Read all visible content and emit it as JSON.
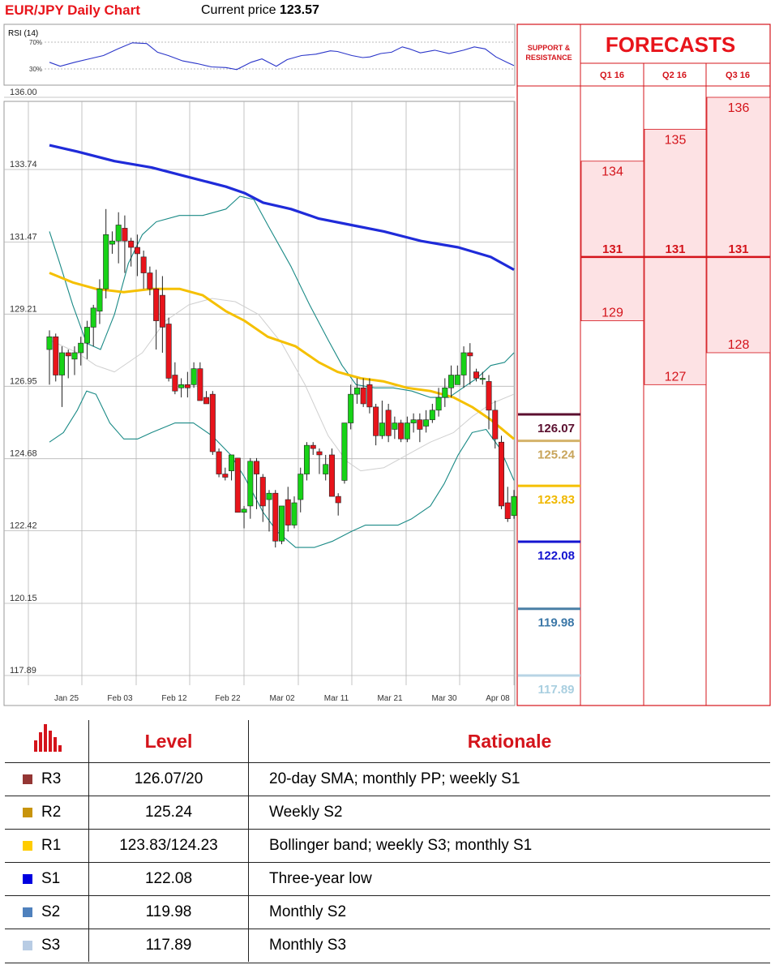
{
  "header": {
    "title": "EUR/JPY Daily Chart",
    "price_label": "Current price",
    "price_value": "123.57"
  },
  "rsi": {
    "label": "RSI (14)",
    "levels": [
      "70%",
      "30%"
    ]
  },
  "colors": {
    "up": "#17d317",
    "down": "#e8141b",
    "sma200": "#1f2bd9",
    "sma50": "#f5c000",
    "bollinger": "#1a8a86",
    "sma20": "#cfcfcf",
    "accent_red": "#d4141b"
  },
  "chart_data": {
    "type": "candlestick",
    "y_ticks": [
      "136.00",
      "133.74",
      "131.47",
      "129.21",
      "126.95",
      "124.68",
      "122.42",
      "120.15",
      "117.89"
    ],
    "ylim": [
      117.89,
      136.0
    ],
    "x_ticks": [
      "Jan 25",
      "Feb 03",
      "Feb 12",
      "Feb 22",
      "Mar 02",
      "Mar 11",
      "Mar 21",
      "Mar 30",
      "Apr 08"
    ],
    "candles": [
      [
        128.1,
        128.5,
        127.2,
        128.7,
        127.0
      ],
      [
        128.5,
        127.3,
        127.0,
        128.6,
        127.1
      ],
      [
        127.3,
        128.0,
        126.6,
        128.2,
        126.3
      ],
      [
        128.0,
        127.9,
        127.3,
        128.1,
        127.2
      ],
      [
        127.8,
        128.0,
        127.6,
        128.2,
        127.3
      ],
      [
        128.0,
        128.3,
        127.8,
        128.5,
        127.6
      ],
      [
        128.3,
        128.8,
        128.1,
        129.0,
        127.8
      ],
      [
        128.8,
        129.4,
        128.5,
        129.5,
        128.2
      ],
      [
        129.3,
        130.0,
        129.2,
        130.3,
        128.9
      ],
      [
        130.0,
        131.7,
        129.8,
        132.5,
        129.7
      ],
      [
        131.4,
        131.5,
        131.2,
        131.8,
        131.1
      ],
      [
        131.5,
        132.0,
        131.2,
        132.4,
        130.8
      ],
      [
        131.9,
        131.5,
        131.0,
        132.3,
        130.5
      ],
      [
        131.5,
        131.3,
        130.8,
        131.6,
        130.7
      ],
      [
        131.3,
        131.1,
        130.8,
        131.7,
        130.4
      ],
      [
        131.0,
        130.5,
        130.2,
        131.2,
        130.0
      ],
      [
        130.5,
        130.0,
        129.7,
        130.7,
        129.8
      ],
      [
        130.0,
        129.0,
        128.5,
        130.6,
        128.1
      ],
      [
        129.8,
        128.8,
        128.3,
        130.4,
        128.0
      ],
      [
        128.9,
        127.2,
        126.9,
        129.1,
        127.1
      ],
      [
        127.3,
        126.8,
        126.6,
        127.7,
        126.7
      ],
      [
        126.9,
        127.0,
        126.8,
        127.2,
        126.6
      ],
      [
        127.0,
        126.9,
        126.8,
        127.4,
        126.6
      ],
      [
        127.0,
        127.5,
        126.9,
        127.7,
        126.9
      ],
      [
        127.5,
        126.5,
        126.3,
        127.7,
        126.6
      ],
      [
        126.6,
        126.4,
        126.2,
        126.8,
        126.4
      ],
      [
        126.7,
        124.9,
        124.6,
        126.8,
        124.8
      ],
      [
        124.9,
        124.2,
        124.1,
        125.0,
        124.1
      ],
      [
        124.2,
        124.1,
        124.0,
        124.4,
        124.0
      ],
      [
        124.3,
        124.8,
        124.0,
        124.8,
        124.0
      ],
      [
        124.7,
        123.0,
        122.9,
        124.7,
        123.0
      ],
      [
        123.0,
        123.1,
        122.8,
        123.2,
        122.5
      ],
      [
        123.2,
        124.6,
        123.1,
        124.7,
        122.8
      ],
      [
        124.6,
        124.2,
        123.6,
        124.7,
        123.1
      ],
      [
        124.1,
        123.2,
        122.7,
        124.2,
        122.7
      ],
      [
        123.4,
        123.6,
        122.7,
        123.7,
        122.4
      ],
      [
        123.6,
        122.1,
        121.8,
        123.7,
        121.9
      ],
      [
        122.1,
        123.2,
        122.0,
        123.2,
        122.0
      ],
      [
        123.4,
        122.6,
        122.4,
        123.8,
        122.4
      ],
      [
        122.6,
        123.3,
        122.6,
        123.5,
        122.5
      ],
      [
        123.4,
        124.2,
        123.2,
        124.4,
        123.0
      ],
      [
        124.2,
        125.1,
        124.1,
        125.2,
        124.0
      ],
      [
        125.1,
        125.0,
        124.8,
        125.2,
        124.8
      ],
      [
        124.9,
        124.8,
        124.3,
        125.0,
        124.2
      ],
      [
        124.2,
        124.5,
        124.0,
        124.8,
        124.0
      ],
      [
        124.8,
        123.5,
        123.2,
        125.0,
        123.5
      ],
      [
        123.5,
        123.3,
        122.7,
        123.6,
        122.9
      ],
      [
        124.0,
        125.8,
        123.7,
        125.8,
        123.9
      ],
      [
        125.8,
        126.7,
        125.6,
        127.0,
        125.6
      ],
      [
        126.7,
        126.9,
        126.5,
        127.2,
        126.4
      ],
      [
        126.9,
        126.4,
        126.3,
        127.2,
        126.3
      ],
      [
        127.0,
        126.3,
        125.9,
        127.2,
        126.1
      ],
      [
        126.3,
        125.4,
        124.9,
        126.4,
        125.1
      ],
      [
        125.4,
        125.8,
        125.3,
        126.5,
        125.3
      ],
      [
        126.2,
        125.4,
        125.3,
        126.4,
        125.2
      ],
      [
        125.6,
        125.8,
        125.4,
        126.0,
        125.3
      ],
      [
        125.8,
        125.3,
        124.8,
        125.9,
        125.2
      ],
      [
        125.3,
        125.8,
        125.1,
        126.0,
        125.2
      ],
      [
        125.8,
        125.9,
        125.4,
        126.1,
        125.5
      ],
      [
        125.9,
        125.6,
        125.3,
        126.1,
        125.2
      ],
      [
        125.7,
        125.9,
        125.4,
        126.2,
        125.5
      ],
      [
        125.9,
        126.2,
        125.7,
        126.4,
        125.8
      ],
      [
        126.2,
        126.6,
        126.1,
        126.9,
        126.0
      ],
      [
        126.6,
        126.9,
        126.4,
        127.2,
        126.3
      ],
      [
        126.9,
        127.3,
        126.7,
        127.6,
        126.6
      ],
      [
        127.0,
        127.3,
        126.8,
        127.6,
        127.0
      ],
      [
        127.3,
        128.0,
        127.1,
        128.2,
        126.9
      ],
      [
        128.0,
        127.9,
        127.2,
        128.3,
        127.0
      ],
      [
        127.4,
        127.2,
        127.0,
        127.5,
        127.1
      ],
      [
        127.2,
        127.2,
        127.0,
        127.4,
        127.0
      ],
      [
        127.1,
        126.2,
        125.2,
        127.3,
        125.6
      ],
      [
        126.2,
        125.3,
        124.8,
        126.5,
        125.0
      ],
      [
        125.2,
        123.2,
        122.5,
        125.4,
        123.1
      ],
      [
        123.3,
        122.8,
        122.6,
        123.8,
        122.7
      ],
      [
        122.9,
        123.5,
        122.8,
        123.7,
        122.8
      ]
    ],
    "lines": [
      {
        "name": "sma200",
        "values": [
          [
            0,
            134.5
          ],
          [
            0.06,
            134.3
          ],
          [
            0.14,
            134.0
          ],
          [
            0.22,
            133.8
          ],
          [
            0.3,
            133.5
          ],
          [
            0.38,
            133.2
          ],
          [
            0.42,
            133.0
          ],
          [
            0.46,
            132.7
          ],
          [
            0.52,
            132.5
          ],
          [
            0.58,
            132.2
          ],
          [
            0.65,
            132.0
          ],
          [
            0.72,
            131.8
          ],
          [
            0.8,
            131.5
          ],
          [
            0.88,
            131.3
          ],
          [
            0.95,
            131.0
          ],
          [
            1.0,
            130.6
          ]
        ]
      },
      {
        "name": "sma50",
        "values": [
          [
            0,
            130.5
          ],
          [
            0.05,
            130.2
          ],
          [
            0.1,
            130.0
          ],
          [
            0.16,
            129.9
          ],
          [
            0.22,
            130.0
          ],
          [
            0.28,
            130.0
          ],
          [
            0.33,
            129.8
          ],
          [
            0.38,
            129.3
          ],
          [
            0.42,
            129.0
          ],
          [
            0.47,
            128.5
          ],
          [
            0.53,
            128.2
          ],
          [
            0.58,
            127.7
          ],
          [
            0.62,
            127.4
          ],
          [
            0.67,
            127.2
          ],
          [
            0.72,
            127.1
          ],
          [
            0.77,
            126.9
          ],
          [
            0.82,
            126.8
          ],
          [
            0.87,
            126.6
          ],
          [
            0.91,
            126.3
          ],
          [
            0.95,
            125.9
          ],
          [
            1.0,
            125.3
          ]
        ]
      },
      {
        "name": "bb_upper",
        "values": [
          [
            0,
            131.8
          ],
          [
            0.02,
            130.9
          ],
          [
            0.05,
            129.5
          ],
          [
            0.08,
            128.3
          ],
          [
            0.11,
            128.1
          ],
          [
            0.14,
            129.2
          ],
          [
            0.17,
            130.8
          ],
          [
            0.2,
            131.7
          ],
          [
            0.23,
            132.1
          ],
          [
            0.28,
            132.3
          ],
          [
            0.33,
            132.3
          ],
          [
            0.38,
            132.5
          ],
          [
            0.41,
            132.9
          ],
          [
            0.44,
            132.8
          ],
          [
            0.47,
            132.0
          ],
          [
            0.52,
            130.7
          ],
          [
            0.56,
            129.5
          ],
          [
            0.6,
            128.4
          ],
          [
            0.63,
            127.6
          ],
          [
            0.66,
            127.0
          ],
          [
            0.7,
            126.9
          ],
          [
            0.74,
            126.9
          ],
          [
            0.78,
            126.8
          ],
          [
            0.82,
            126.6
          ],
          [
            0.86,
            126.6
          ],
          [
            0.9,
            127.0
          ],
          [
            0.92,
            127.2
          ],
          [
            0.95,
            127.6
          ],
          [
            0.98,
            127.7
          ],
          [
            1.0,
            128.0
          ]
        ]
      },
      {
        "name": "bb_lower",
        "values": [
          [
            0,
            125.2
          ],
          [
            0.03,
            125.5
          ],
          [
            0.06,
            126.2
          ],
          [
            0.08,
            126.8
          ],
          [
            0.1,
            126.7
          ],
          [
            0.13,
            125.8
          ],
          [
            0.16,
            125.3
          ],
          [
            0.19,
            125.3
          ],
          [
            0.22,
            125.5
          ],
          [
            0.27,
            125.8
          ],
          [
            0.31,
            125.8
          ],
          [
            0.35,
            125.4
          ],
          [
            0.39,
            124.8
          ],
          [
            0.42,
            124.1
          ],
          [
            0.46,
            123.0
          ],
          [
            0.49,
            122.4
          ],
          [
            0.53,
            121.9
          ],
          [
            0.57,
            121.9
          ],
          [
            0.61,
            122.1
          ],
          [
            0.65,
            122.4
          ],
          [
            0.68,
            122.6
          ],
          [
            0.72,
            122.6
          ],
          [
            0.75,
            122.6
          ],
          [
            0.78,
            122.8
          ],
          [
            0.82,
            123.2
          ],
          [
            0.85,
            123.9
          ],
          [
            0.88,
            124.8
          ],
          [
            0.91,
            125.5
          ],
          [
            0.94,
            125.6
          ],
          [
            0.97,
            125.0
          ],
          [
            1.0,
            124.0
          ]
        ]
      },
      {
        "name": "sma20",
        "values": [
          [
            0,
            128.4
          ],
          [
            0.06,
            128.0
          ],
          [
            0.1,
            127.6
          ],
          [
            0.14,
            127.4
          ],
          [
            0.2,
            128.0
          ],
          [
            0.25,
            129.0
          ],
          [
            0.3,
            129.5
          ],
          [
            0.35,
            129.7
          ],
          [
            0.4,
            129.6
          ],
          [
            0.45,
            129.2
          ],
          [
            0.5,
            128.3
          ],
          [
            0.55,
            127.0
          ],
          [
            0.6,
            125.4
          ],
          [
            0.64,
            124.6
          ],
          [
            0.67,
            124.3
          ],
          [
            0.72,
            124.4
          ],
          [
            0.77,
            124.8
          ],
          [
            0.82,
            125.2
          ],
          [
            0.87,
            125.5
          ],
          [
            0.91,
            126.0
          ],
          [
            0.95,
            126.4
          ],
          [
            1.0,
            126.7
          ]
        ]
      }
    ],
    "rsi_values": [
      [
        0,
        40
      ],
      [
        0.03,
        34
      ],
      [
        0.07,
        40
      ],
      [
        0.11,
        45
      ],
      [
        0.15,
        50
      ],
      [
        0.19,
        60
      ],
      [
        0.23,
        69
      ],
      [
        0.27,
        68
      ],
      [
        0.3,
        55
      ],
      [
        0.33,
        50
      ],
      [
        0.37,
        42
      ],
      [
        0.41,
        38
      ],
      [
        0.45,
        33
      ],
      [
        0.49,
        32
      ],
      [
        0.52,
        29
      ],
      [
        0.56,
        40
      ],
      [
        0.59,
        45
      ],
      [
        0.63,
        34
      ],
      [
        0.66,
        44
      ],
      [
        0.7,
        50
      ],
      [
        0.74,
        52
      ],
      [
        0.78,
        57
      ],
      [
        0.8,
        56
      ],
      [
        0.84,
        50
      ],
      [
        0.87,
        47
      ],
      [
        0.89,
        48
      ],
      [
        0.92,
        53
      ],
      [
        0.95,
        55
      ],
      [
        0.98,
        63
      ],
      [
        1.0,
        60
      ],
      [
        1.03,
        54
      ],
      [
        1.07,
        58
      ],
      [
        1.11,
        53
      ],
      [
        1.15,
        58
      ],
      [
        1.18,
        63
      ],
      [
        1.21,
        60
      ],
      [
        1.24,
        48
      ],
      [
        1.27,
        40
      ],
      [
        1.29,
        35
      ]
    ]
  },
  "support_resistance": {
    "header": [
      "SUPPORT &",
      "RESISTANCE"
    ],
    "levels": [
      {
        "value": "126.07",
        "price": 126.07,
        "color": "#5b0f2f",
        "text_color": "#5b0f2f"
      },
      {
        "value": "125.24",
        "price": 125.24,
        "color": "#d4b26a",
        "text_color": "#c8a45a"
      },
      {
        "value": "123.83",
        "price": 123.83,
        "color": "#f5c000",
        "text_color": "#f0b800"
      },
      {
        "value": "122.08",
        "price": 122.08,
        "color": "#1414d0",
        "text_color": "#1414d0"
      },
      {
        "value": "119.98",
        "price": 119.98,
        "color": "#4a7fa6",
        "text_color": "#3c78a8"
      },
      {
        "value": "117.89",
        "price": 117.89,
        "color": "#b8d4e4",
        "text_color": "#a9cfe0"
      }
    ]
  },
  "forecasts": {
    "title": "FORECASTS",
    "quarters": [
      {
        "label": "Q1 16",
        "high": "134",
        "high_price": 134,
        "mid": "131",
        "low": "129",
        "low_price": 129
      },
      {
        "label": "Q2 16",
        "high": "135",
        "high_price": 135,
        "mid": "131",
        "low": "127",
        "low_price": 127
      },
      {
        "label": "Q3 16",
        "high": "136",
        "high_price": 136,
        "mid": "131",
        "low": "128",
        "low_price": 128
      }
    ]
  },
  "table": {
    "headers": [
      "Level",
      "Rationale"
    ],
    "rows": [
      {
        "name": "R3",
        "level": "126.07/20",
        "rationale": "20-day SMA; monthly PP; weekly S1",
        "color": "#943634"
      },
      {
        "name": "R2",
        "level": "125.24",
        "rationale": "Weekly S2",
        "color": "#c8940c"
      },
      {
        "name": "R1",
        "level": "123.83/124.23",
        "rationale": "Bollinger band; weekly S3; monthly S1",
        "color": "#ffcc00"
      },
      {
        "name": "S1",
        "level": "122.08",
        "rationale": "Three-year low",
        "color": "#0000e0"
      },
      {
        "name": "S2",
        "level": "119.98",
        "rationale": "Monthly S2",
        "color": "#4f81bd"
      },
      {
        "name": "S3",
        "level": "117.89",
        "rationale": "Monthly S3",
        "color": "#b8cce4"
      }
    ]
  }
}
